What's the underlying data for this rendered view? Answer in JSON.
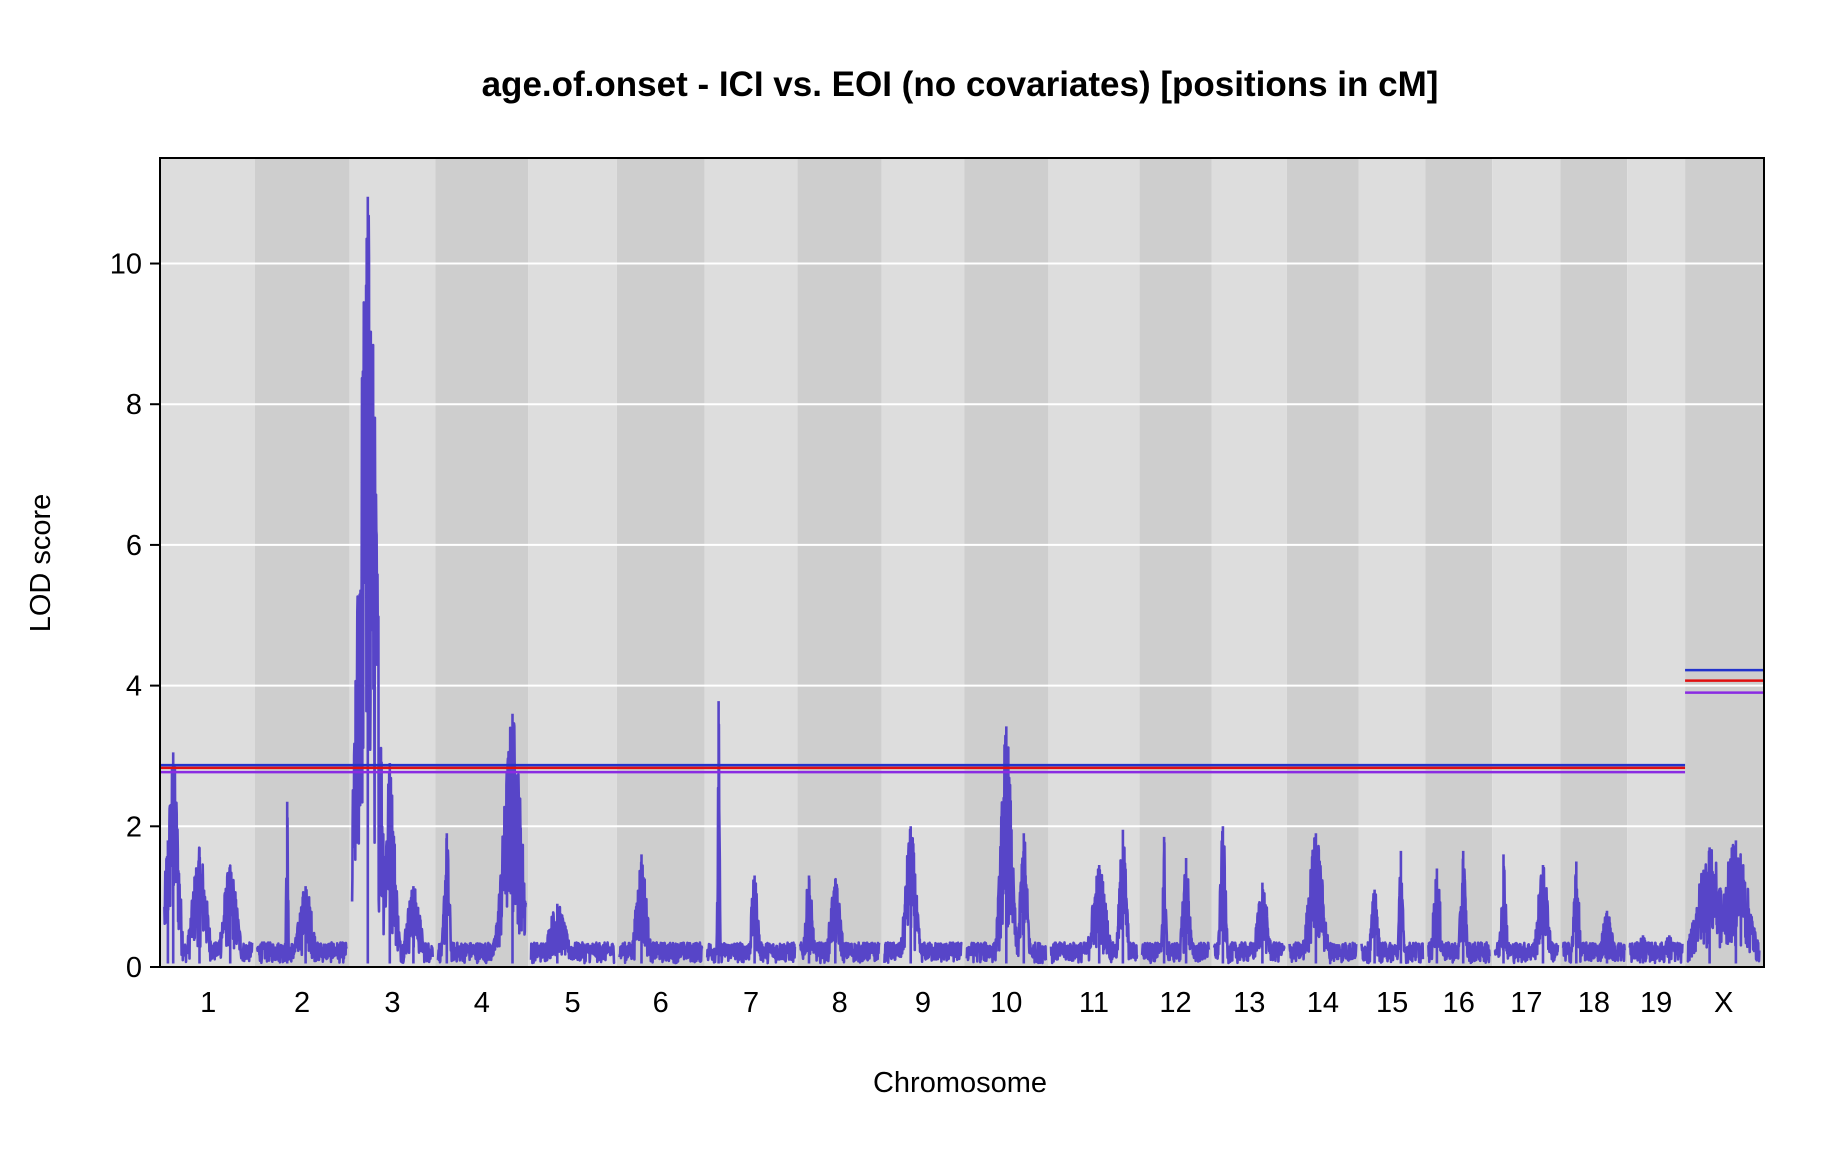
{
  "chart_data": {
    "type": "line",
    "title": "age.of.onset - ICI vs. EOI (no covariates) [positions in cM]",
    "xlabel": "Chromosome",
    "ylabel": "LOD score",
    "ylim": [
      0,
      11.5
    ],
    "yticks": [
      0,
      2,
      4,
      6,
      8,
      10
    ],
    "grid": "horizontal",
    "chromosomes": [
      {
        "name": "1",
        "length_cM": 100
      },
      {
        "name": "2",
        "length_cM": 102
      },
      {
        "name": "3",
        "length_cM": 92
      },
      {
        "name": "4",
        "length_cM": 100
      },
      {
        "name": "5",
        "length_cM": 95
      },
      {
        "name": "6",
        "length_cM": 94
      },
      {
        "name": "7",
        "length_cM": 100
      },
      {
        "name": "8",
        "length_cM": 90
      },
      {
        "name": "9",
        "length_cM": 88
      },
      {
        "name": "10",
        "length_cM": 90
      },
      {
        "name": "11",
        "length_cM": 98
      },
      {
        "name": "12",
        "length_cM": 76
      },
      {
        "name": "13",
        "length_cM": 80
      },
      {
        "name": "14",
        "length_cM": 76
      },
      {
        "name": "15",
        "length_cM": 70
      },
      {
        "name": "16",
        "length_cM": 70
      },
      {
        "name": "17",
        "length_cM": 72
      },
      {
        "name": "18",
        "length_cM": 70
      },
      {
        "name": "19",
        "length_cM": 60
      },
      {
        "name": "X",
        "length_cM": 82
      }
    ],
    "series": [
      {
        "color": "#5745c8",
        "peaks": [
          {
            "chr": "1",
            "pos": 10,
            "lod": 3.05,
            "width": 6
          },
          {
            "chr": "1",
            "pos": 4,
            "lod": 1.8,
            "width": 4
          },
          {
            "chr": "1",
            "pos": 40,
            "lod": 1.7,
            "width": 8
          },
          {
            "chr": "1",
            "pos": 75,
            "lod": 1.45,
            "width": 8
          },
          {
            "chr": "2",
            "pos": 34,
            "lod": 2.35,
            "width": 1
          },
          {
            "chr": "2",
            "pos": 55,
            "lod": 1.15,
            "width": 8
          },
          {
            "chr": "3",
            "pos": 18,
            "lod": 10.95,
            "width": 10
          },
          {
            "chr": "3",
            "pos": 43,
            "lod": 2.9,
            "width": 6
          },
          {
            "chr": "3",
            "pos": 70,
            "lod": 1.15,
            "width": 8
          },
          {
            "chr": "4",
            "pos": 10,
            "lod": 1.9,
            "width": 3
          },
          {
            "chr": "4",
            "pos": 85,
            "lod": 3.6,
            "width": 10
          },
          {
            "chr": "5",
            "pos": 30,
            "lod": 0.9,
            "width": 10
          },
          {
            "chr": "6",
            "pos": 25,
            "lod": 1.6,
            "width": 6
          },
          {
            "chr": "7",
            "pos": 13,
            "lod": 3.78,
            "width": 1
          },
          {
            "chr": "7",
            "pos": 54,
            "lod": 1.3,
            "width": 4
          },
          {
            "chr": "8",
            "pos": 10,
            "lod": 1.3,
            "width": 4
          },
          {
            "chr": "8",
            "pos": 40,
            "lod": 1.25,
            "width": 6
          },
          {
            "chr": "9",
            "pos": 30,
            "lod": 2.0,
            "width": 6
          },
          {
            "chr": "10",
            "pos": 45,
            "lod": 3.42,
            "width": 6
          },
          {
            "chr": "10",
            "pos": 65,
            "lod": 1.9,
            "width": 4
          },
          {
            "chr": "11",
            "pos": 55,
            "lod": 1.45,
            "width": 8
          },
          {
            "chr": "11",
            "pos": 82,
            "lod": 1.95,
            "width": 4
          },
          {
            "chr": "12",
            "pos": 25,
            "lod": 1.85,
            "width": 2
          },
          {
            "chr": "12",
            "pos": 50,
            "lod": 1.55,
            "width": 4
          },
          {
            "chr": "13",
            "pos": 10,
            "lod": 2.0,
            "width": 3
          },
          {
            "chr": "13",
            "pos": 55,
            "lod": 1.2,
            "width": 6
          },
          {
            "chr": "14",
            "pos": 30,
            "lod": 1.9,
            "width": 8
          },
          {
            "chr": "15",
            "pos": 15,
            "lod": 1.1,
            "width": 4
          },
          {
            "chr": "15",
            "pos": 45,
            "lod": 1.65,
            "width": 2
          },
          {
            "chr": "16",
            "pos": 10,
            "lod": 1.4,
            "width": 4
          },
          {
            "chr": "16",
            "pos": 40,
            "lod": 1.65,
            "width": 3
          },
          {
            "chr": "17",
            "pos": 10,
            "lod": 1.6,
            "width": 3
          },
          {
            "chr": "17",
            "pos": 55,
            "lod": 1.45,
            "width": 6
          },
          {
            "chr": "18",
            "pos": 15,
            "lod": 1.5,
            "width": 3
          },
          {
            "chr": "18",
            "pos": 50,
            "lod": 0.8,
            "width": 6
          },
          {
            "chr": "19",
            "pos": 15,
            "lod": 0.45,
            "width": 6
          },
          {
            "chr": "19",
            "pos": 45,
            "lod": 0.45,
            "width": 6
          },
          {
            "chr": "X",
            "pos": 25,
            "lod": 1.7,
            "width": 14
          },
          {
            "chr": "X",
            "pos": 55,
            "lod": 1.8,
            "width": 14
          }
        ]
      }
    ],
    "thresholds": {
      "autosome": [
        {
          "color": "#2233cc",
          "lod": 2.87
        },
        {
          "color": "#e01010",
          "lod": 2.83
        },
        {
          "color": "#8a2be2",
          "lod": 2.77
        }
      ],
      "X": [
        {
          "color": "#2233cc",
          "lod": 4.22
        },
        {
          "color": "#e01010",
          "lod": 4.07
        },
        {
          "color": "#8a2be2",
          "lod": 3.9
        }
      ]
    },
    "colors": {
      "band_light": "#dddddd",
      "band_dark": "#cecece",
      "grid": "#ffffff",
      "trace": "#5745c8"
    }
  }
}
